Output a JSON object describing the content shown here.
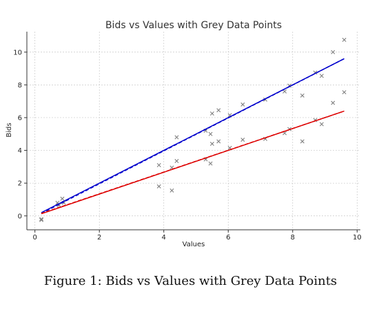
{
  "chart_data": {
    "type": "scatter",
    "title": "Bids vs Values with Grey Data Points",
    "xlabel": "Values",
    "ylabel": "Bids",
    "xlim": [
      -0.25,
      10.1
    ],
    "ylim": [
      -0.85,
      11.25
    ],
    "xticks": [
      0,
      2,
      4,
      6,
      8,
      10
    ],
    "yticks": [
      0,
      2,
      4,
      6,
      8,
      10
    ],
    "grid": true,
    "legend": "none",
    "series": [
      {
        "marker": "x",
        "color": "#808080",
        "points": [
          [
            0.2,
            -0.2
          ],
          [
            0.2,
            -0.25
          ],
          [
            0.7,
            0.8
          ],
          [
            0.75,
            0.65
          ],
          [
            0.85,
            1.05
          ],
          [
            0.9,
            0.8
          ],
          [
            3.85,
            3.1
          ],
          [
            3.85,
            1.8
          ],
          [
            4.25,
            2.95
          ],
          [
            4.25,
            1.55
          ],
          [
            4.4,
            3.35
          ],
          [
            4.4,
            4.8
          ],
          [
            5.3,
            5.2
          ],
          [
            5.3,
            3.45
          ],
          [
            5.45,
            5.0
          ],
          [
            5.45,
            3.2
          ],
          [
            5.5,
            6.25
          ],
          [
            5.5,
            4.4
          ],
          [
            5.7,
            6.45
          ],
          [
            5.7,
            4.55
          ],
          [
            6.05,
            6.15
          ],
          [
            6.05,
            4.15
          ],
          [
            6.45,
            6.8
          ],
          [
            6.45,
            4.65
          ],
          [
            7.15,
            7.1
          ],
          [
            7.15,
            4.7
          ],
          [
            7.75,
            7.6
          ],
          [
            7.75,
            5.05
          ],
          [
            7.9,
            7.95
          ],
          [
            7.9,
            5.3
          ],
          [
            8.3,
            7.35
          ],
          [
            8.3,
            4.55
          ],
          [
            8.7,
            8.75
          ],
          [
            8.7,
            5.85
          ],
          [
            8.9,
            8.55
          ],
          [
            8.9,
            5.6
          ],
          [
            9.25,
            10.0
          ],
          [
            9.25,
            6.9
          ],
          [
            9.6,
            10.75
          ],
          [
            9.6,
            7.55
          ]
        ]
      },
      {
        "line": "solid",
        "color": "#0000cc",
        "points": [
          [
            0.2,
            0.2
          ],
          [
            9.6,
            9.6
          ]
        ]
      },
      {
        "line": "dashed",
        "color": "#0000cc",
        "points": [
          [
            0.2,
            0.15
          ],
          [
            9.6,
            9.6
          ]
        ]
      },
      {
        "line": "solid",
        "color": "#dd0000",
        "points": [
          [
            0.2,
            0.13
          ],
          [
            9.6,
            6.4
          ]
        ]
      },
      {
        "line": "dashed",
        "color": "#dd0000",
        "points": [
          [
            0.2,
            0.15
          ],
          [
            9.6,
            6.4
          ]
        ]
      }
    ]
  },
  "figure": {
    "caption": "Figure 1: Bids vs Values with Grey Data Points"
  }
}
